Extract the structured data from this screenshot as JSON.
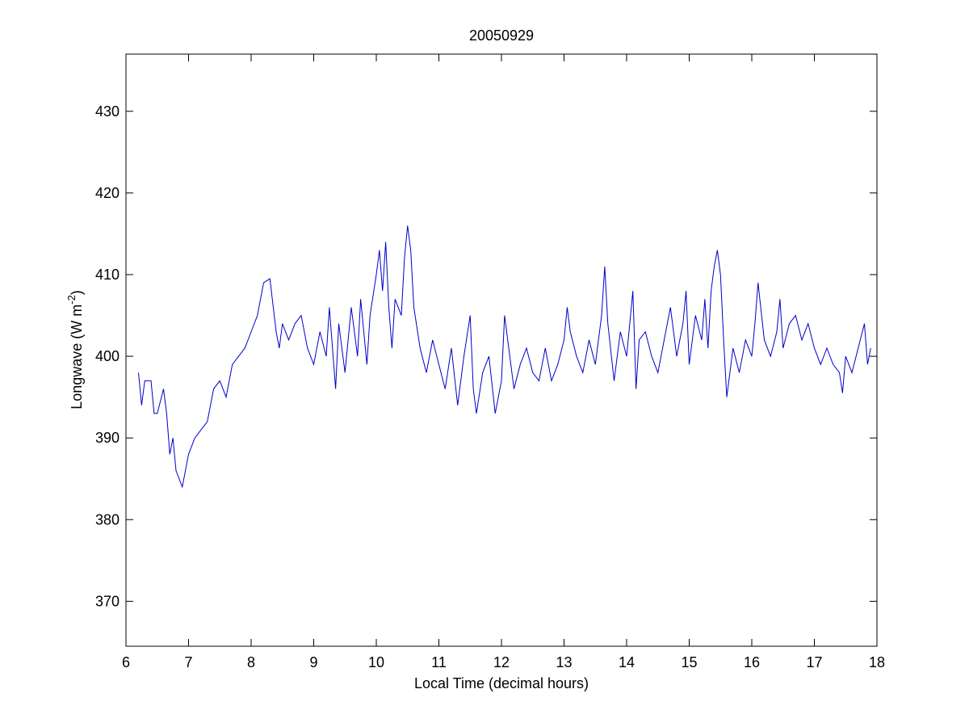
{
  "chart_data": {
    "type": "line",
    "title": "20050929",
    "xlabel": "Local Time (decimal hours)",
    "ylabel": {
      "text": "Longwave (W m",
      "superscript": "-2",
      "suffix": ")"
    },
    "color": "#0000c8",
    "x": [
      6.2,
      6.25,
      6.3,
      6.4,
      6.45,
      6.5,
      6.6,
      6.65,
      6.7,
      6.75,
      6.8,
      6.9,
      7.0,
      7.1,
      7.2,
      7.3,
      7.4,
      7.5,
      7.6,
      7.7,
      7.8,
      7.9,
      8.0,
      8.1,
      8.2,
      8.3,
      8.4,
      8.45,
      8.5,
      8.6,
      8.7,
      8.8,
      8.9,
      9.0,
      9.1,
      9.2,
      9.25,
      9.35,
      9.4,
      9.5,
      9.6,
      9.7,
      9.75,
      9.85,
      9.9,
      10.0,
      10.05,
      10.1,
      10.15,
      10.2,
      10.25,
      10.3,
      10.4,
      10.45,
      10.5,
      10.55,
      10.6,
      10.7,
      10.8,
      10.9,
      11.0,
      11.1,
      11.2,
      11.3,
      11.4,
      11.5,
      11.55,
      11.6,
      11.7,
      11.8,
      11.9,
      12.0,
      12.05,
      12.1,
      12.2,
      12.3,
      12.4,
      12.5,
      12.6,
      12.7,
      12.8,
      12.9,
      13.0,
      13.05,
      13.1,
      13.2,
      13.3,
      13.4,
      13.5,
      13.6,
      13.65,
      13.7,
      13.8,
      13.9,
      14.0,
      14.1,
      14.15,
      14.2,
      14.3,
      14.4,
      14.5,
      14.6,
      14.7,
      14.8,
      14.9,
      14.95,
      15.0,
      15.1,
      15.2,
      15.25,
      15.3,
      15.35,
      15.4,
      15.45,
      15.5,
      15.55,
      15.6,
      15.7,
      15.8,
      15.9,
      16.0,
      16.05,
      16.1,
      16.2,
      16.3,
      16.4,
      16.45,
      16.5,
      16.6,
      16.7,
      16.8,
      16.9,
      17.0,
      17.1,
      17.2,
      17.3,
      17.4,
      17.45,
      17.5,
      17.6,
      17.7,
      17.8,
      17.85,
      17.9
    ],
    "values": [
      398,
      394,
      397,
      397,
      393,
      393,
      396,
      393,
      388,
      390,
      386,
      384,
      388,
      390,
      391,
      392,
      396,
      397,
      395,
      399,
      400,
      401,
      403,
      405,
      409,
      409.5,
      403,
      401,
      404,
      402,
      404,
      405,
      401,
      399,
      403,
      400,
      406,
      396,
      404,
      398,
      406,
      400,
      407,
      399,
      405,
      410,
      413,
      408,
      414,
      406,
      401,
      407,
      405,
      412,
      416,
      413,
      406,
      401,
      398,
      402,
      399,
      396,
      401,
      394,
      400,
      405,
      396,
      393,
      398,
      400,
      393,
      397,
      405,
      402,
      396,
      399,
      401,
      398,
      397,
      401,
      397,
      399,
      402,
      406,
      403,
      400,
      398,
      402,
      399,
      405,
      411,
      404,
      397,
      403,
      400,
      408,
      396,
      402,
      403,
      400,
      398,
      402,
      406,
      400,
      404,
      408,
      399,
      405,
      402,
      407,
      401,
      408,
      411,
      413,
      410,
      402,
      395,
      401,
      398,
      402,
      400,
      404,
      409,
      402,
      400,
      403,
      407,
      401,
      404,
      405,
      402,
      404,
      401,
      399,
      401,
      399,
      398,
      395.5,
      400,
      398,
      401,
      404,
      399,
      401
    ],
    "xlim": [
      6,
      18
    ],
    "xticks": [
      6,
      7,
      8,
      9,
      10,
      11,
      12,
      13,
      14,
      15,
      16,
      17,
      18
    ],
    "ylim": [
      364.5,
      437
    ],
    "yticks": [
      370,
      380,
      390,
      400,
      410,
      420,
      430
    ]
  }
}
